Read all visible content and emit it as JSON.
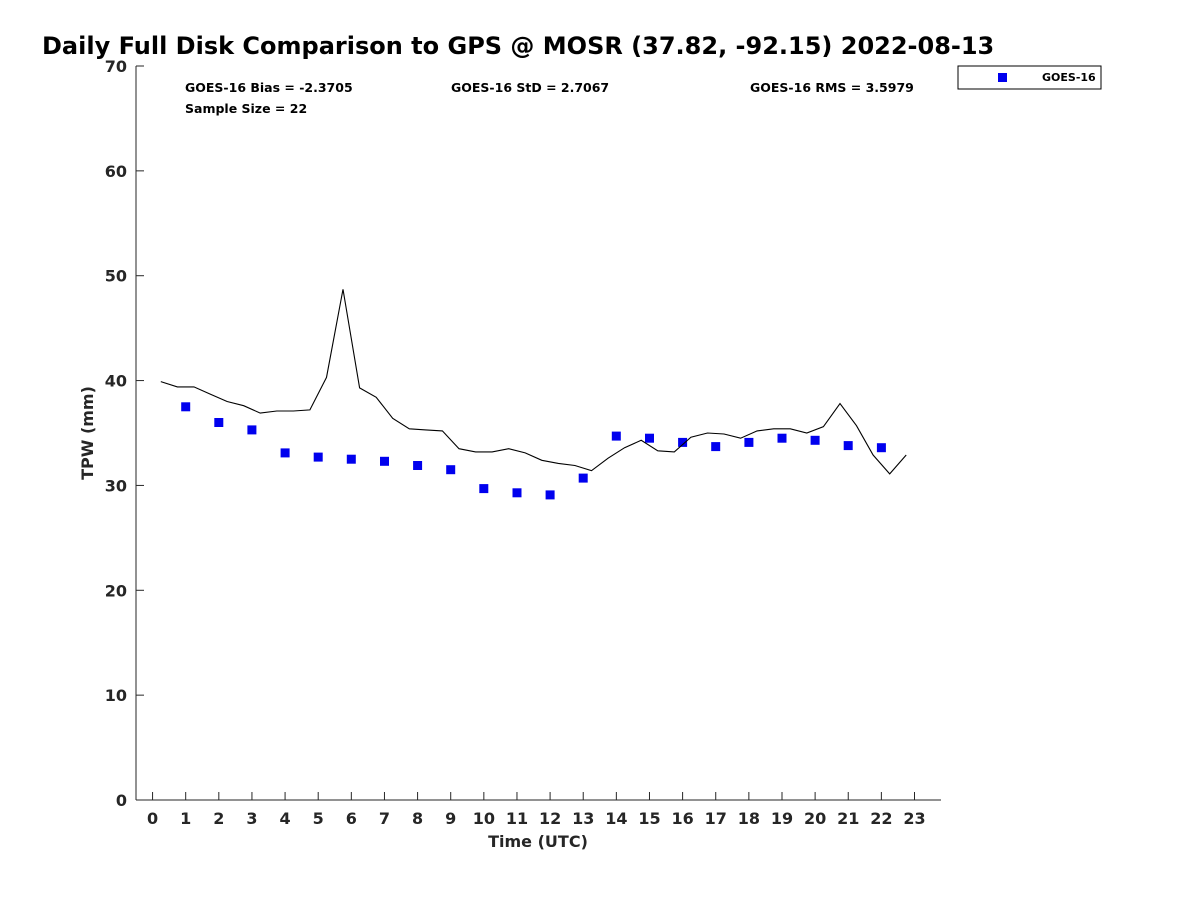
{
  "chart_data": {
    "type": "scatter",
    "title": "Daily Full Disk Comparison to GPS @ MOSR (37.82, -92.15) 2022-08-13",
    "xlabel": "Time (UTC)",
    "ylabel": "TPW (mm)",
    "xlim": [
      -0.5,
      23.8
    ],
    "ylim": [
      0,
      70
    ],
    "x_ticks": [
      0,
      1,
      2,
      3,
      4,
      5,
      6,
      7,
      8,
      9,
      10,
      11,
      12,
      13,
      14,
      15,
      16,
      17,
      18,
      19,
      20,
      21,
      22,
      23
    ],
    "y_ticks": [
      0,
      10,
      20,
      30,
      40,
      50,
      60,
      70
    ],
    "grid": false,
    "legend": {
      "position": "top-right",
      "entries": [
        "GOES-16"
      ]
    },
    "stats": {
      "bias": "GOES-16 Bias = -2.3705",
      "std": "GOES-16 StD = 2.7067",
      "rms": "GOES-16 RMS = 3.5979",
      "sample": "Sample Size = 22"
    },
    "series": [
      {
        "name": "GOES-16",
        "kind": "scatter",
        "marker": "square",
        "color": "#0000ee",
        "x": [
          1,
          2,
          3,
          4,
          5,
          6,
          7,
          8,
          9,
          10,
          11,
          12,
          13,
          14,
          15,
          16,
          17,
          18,
          19,
          20,
          21,
          22
        ],
        "y": [
          37.5,
          36.0,
          35.3,
          33.1,
          32.7,
          32.5,
          32.3,
          31.9,
          31.5,
          29.7,
          29.3,
          29.1,
          30.7,
          34.7,
          34.5,
          34.1,
          33.7,
          34.1,
          34.5,
          34.3,
          33.8,
          33.6
        ]
      },
      {
        "name": "GPS",
        "kind": "line",
        "color": "#000000",
        "x": [
          0.25,
          0.75,
          1.25,
          1.75,
          2.25,
          2.75,
          3.25,
          3.75,
          4.25,
          4.75,
          5.25,
          5.75,
          6.25,
          6.75,
          7.25,
          7.75,
          8.25,
          8.75,
          9.25,
          9.75,
          10.25,
          10.75,
          11.25,
          11.75,
          12.25,
          12.75,
          13.25,
          13.75,
          14.25,
          14.75,
          15.25,
          15.75,
          16.25,
          16.75,
          17.25,
          17.75,
          18.25,
          18.75,
          19.25,
          19.75,
          20.25,
          20.75,
          21.25,
          21.75,
          22.25,
          22.75
        ],
        "y": [
          39.9,
          39.4,
          39.4,
          38.7,
          38.0,
          37.6,
          36.9,
          37.1,
          37.1,
          37.2,
          40.3,
          48.7,
          39.3,
          38.4,
          36.4,
          35.4,
          35.3,
          35.2,
          33.5,
          33.2,
          33.2,
          33.5,
          33.1,
          32.4,
          32.1,
          31.9,
          31.4,
          32.6,
          33.6,
          34.3,
          33.3,
          33.2,
          34.6,
          35.0,
          34.9,
          34.5,
          35.2,
          35.4,
          35.4,
          35.0,
          35.6,
          37.8,
          35.7,
          32.9,
          31.1,
          32.9
        ]
      }
    ]
  }
}
